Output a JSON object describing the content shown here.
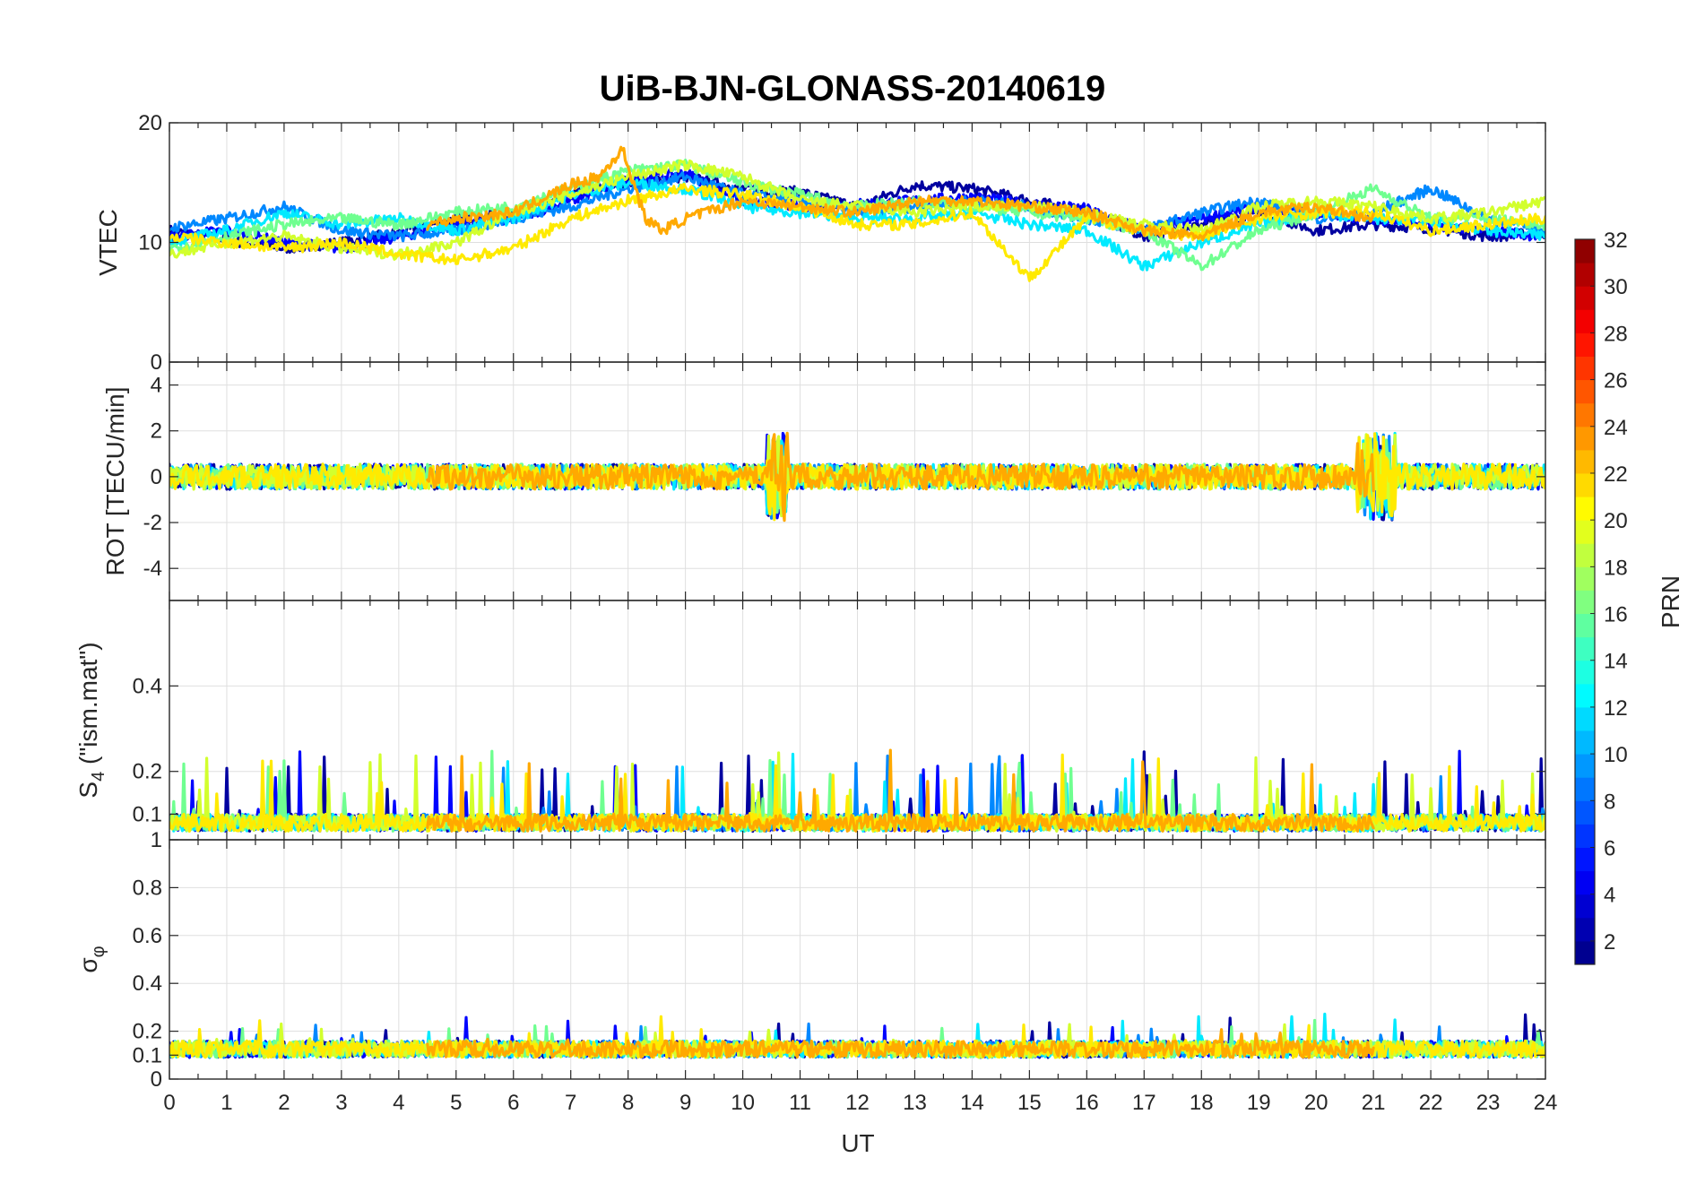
{
  "chart_data": {
    "type": "line",
    "title": "UiB-BJN-GLONASS-20140619",
    "xlabel": "UT",
    "xlim": [
      0,
      24
    ],
    "xticks": [
      "0",
      "1",
      "2",
      "3",
      "4",
      "5",
      "6",
      "7",
      "8",
      "9",
      "10",
      "11",
      "12",
      "13",
      "14",
      "15",
      "16",
      "17",
      "18",
      "19",
      "20",
      "21",
      "22",
      "23",
      "24"
    ],
    "grid": true,
    "panels": [
      {
        "id": "vtec",
        "ylabel": "VTEC",
        "ylim": [
          0,
          20
        ],
        "yticks": [
          0,
          10,
          20
        ],
        "ytick_labels": [
          "0",
          "10",
          "20"
        ]
      },
      {
        "id": "rot",
        "ylabel": "ROT [TECU/min]",
        "ylim": [
          -5.4,
          5
        ],
        "yticks": [
          -4,
          -2,
          0,
          2,
          4
        ],
        "ytick_labels": [
          "-4",
          "-2",
          "0",
          "2",
          "4"
        ]
      },
      {
        "id": "s4",
        "ylabel_main": "S",
        "ylabel_sub": "4",
        "ylabel_rest": " (\"ism.mat\")",
        "ylim": [
          0.04,
          0.6
        ],
        "yticks": [
          0.1,
          0.2,
          0.4
        ],
        "ytick_labels": [
          "0.1",
          "0.2",
          "0.4"
        ]
      },
      {
        "id": "sigma",
        "ylabel_main": "σ",
        "ylabel_sub": "φ",
        "ylim": [
          0,
          1
        ],
        "yticks": [
          0,
          0.1,
          0.2,
          0.4,
          0.6,
          0.8,
          1
        ],
        "ytick_labels": [
          "0",
          "0.1",
          "0.2",
          "0.4",
          "0.6",
          "0.8",
          "1"
        ]
      }
    ],
    "colorbar": {
      "label": "PRN",
      "range": [
        1,
        32
      ],
      "ticks": [
        "2",
        "4",
        "6",
        "8",
        "10",
        "12",
        "14",
        "16",
        "18",
        "20",
        "22",
        "24",
        "26",
        "28",
        "30",
        "32"
      ]
    },
    "series_style": {
      "description": "one coloured trace per GLONASS PRN, coloured by jet colormap",
      "prns": [
        1,
        3,
        5,
        8,
        10,
        12,
        14,
        16,
        18,
        20,
        22,
        24
      ]
    },
    "series": [
      {
        "prn": 2,
        "vtec": [
          [
            0,
            11
          ],
          [
            1,
            10.2
          ],
          [
            2,
            9.5
          ],
          [
            3,
            10
          ],
          [
            4,
            10.8
          ],
          [
            5,
            12
          ],
          [
            6,
            12.5
          ],
          [
            7,
            14
          ],
          [
            8,
            15
          ],
          [
            9,
            15.5
          ],
          [
            10,
            14.5
          ],
          [
            11,
            14.2
          ],
          [
            12,
            13
          ],
          [
            13,
            14.8
          ],
          [
            14,
            14.5
          ],
          [
            15,
            13.5
          ],
          [
            16,
            12.5
          ],
          [
            17,
            10.5
          ],
          [
            18,
            11.5
          ],
          [
            19,
            12.5
          ],
          [
            20,
            11
          ],
          [
            21,
            11.5
          ],
          [
            22,
            11.2
          ],
          [
            23,
            10.5
          ],
          [
            24,
            10.8
          ]
        ]
      },
      {
        "prn": 5,
        "vtec": [
          [
            0,
            10.5
          ],
          [
            1,
            11
          ],
          [
            2,
            10
          ],
          [
            3,
            9.5
          ],
          [
            4,
            10.5
          ],
          [
            5,
            11.5
          ],
          [
            6,
            12
          ],
          [
            7,
            13.5
          ],
          [
            8,
            15.2
          ],
          [
            9,
            15.8
          ],
          [
            10,
            13.5
          ],
          [
            11,
            13
          ],
          [
            12,
            13.2
          ],
          [
            13,
            13.5
          ],
          [
            14,
            13.8
          ],
          [
            15,
            13.2
          ],
          [
            16,
            12.8
          ],
          [
            17,
            11
          ],
          [
            18,
            12
          ],
          [
            19,
            13
          ],
          [
            20,
            12.5
          ],
          [
            21,
            12
          ],
          [
            22,
            11.5
          ],
          [
            23,
            11
          ],
          [
            24,
            10.5
          ]
        ]
      },
      {
        "prn": 9,
        "vtec": [
          [
            0,
            11.2
          ],
          [
            1,
            12
          ],
          [
            2,
            13
          ],
          [
            3,
            11
          ],
          [
            4,
            10.5
          ],
          [
            5,
            11
          ],
          [
            6,
            12
          ],
          [
            7,
            13
          ],
          [
            8,
            14.5
          ],
          [
            9,
            15.5
          ],
          [
            10,
            14
          ],
          [
            11,
            13.5
          ],
          [
            12,
            12.5
          ],
          [
            13,
            13
          ],
          [
            14,
            13.5
          ],
          [
            15,
            13
          ],
          [
            16,
            12
          ],
          [
            17,
            11
          ],
          [
            18,
            12.5
          ],
          [
            19,
            13.5
          ],
          [
            20,
            12
          ],
          [
            21,
            12.5
          ],
          [
            22,
            14.5
          ],
          [
            23,
            12
          ],
          [
            24,
            11
          ]
        ]
      },
      {
        "prn": 12,
        "vtec": [
          [
            0,
            10
          ],
          [
            1,
            11
          ],
          [
            2,
            12.5
          ],
          [
            3,
            11.5
          ],
          [
            4,
            12
          ],
          [
            5,
            11
          ],
          [
            6,
            12
          ],
          [
            7,
            14
          ],
          [
            8,
            15
          ],
          [
            9,
            14.5
          ],
          [
            10,
            13
          ],
          [
            11,
            12.5
          ],
          [
            12,
            12
          ],
          [
            13,
            12
          ],
          [
            14,
            12.5
          ],
          [
            15,
            11.5
          ],
          [
            16,
            11
          ],
          [
            17,
            8
          ],
          [
            18,
            10
          ],
          [
            19,
            11.5
          ],
          [
            20,
            12.5
          ],
          [
            21,
            12
          ],
          [
            22,
            11.8
          ],
          [
            23,
            11
          ],
          [
            24,
            10.5
          ]
        ]
      },
      {
        "prn": 16,
        "vtec": [
          [
            0,
            9.5
          ],
          [
            1,
            10.5
          ],
          [
            2,
            11.5
          ],
          [
            3,
            12
          ],
          [
            4,
            11.5
          ],
          [
            5,
            12.5
          ],
          [
            6,
            13
          ],
          [
            7,
            14.5
          ],
          [
            8,
            16
          ],
          [
            9,
            16.5
          ],
          [
            10,
            15
          ],
          [
            11,
            14
          ],
          [
            12,
            13
          ],
          [
            13,
            13.5
          ],
          [
            14,
            13
          ],
          [
            15,
            12.5
          ],
          [
            16,
            12
          ],
          [
            17,
            11
          ],
          [
            18,
            8
          ],
          [
            19,
            11
          ],
          [
            20,
            12.5
          ],
          [
            21,
            14.5
          ],
          [
            22,
            12
          ],
          [
            23,
            12
          ],
          [
            24,
            11.5
          ]
        ]
      },
      {
        "prn": 19,
        "vtec": [
          [
            0,
            9
          ],
          [
            1,
            10
          ],
          [
            2,
            10.5
          ],
          [
            3,
            9.5
          ],
          [
            4,
            9
          ],
          [
            5,
            10
          ],
          [
            6,
            12.5
          ],
          [
            7,
            14
          ],
          [
            8,
            15.5
          ],
          [
            9,
            16.5
          ],
          [
            10,
            15.5
          ],
          [
            11,
            13.5
          ],
          [
            12,
            13
          ],
          [
            13,
            12.5
          ],
          [
            14,
            13
          ],
          [
            15,
            13
          ],
          [
            16,
            12.5
          ],
          [
            17,
            11.5
          ],
          [
            18,
            11
          ],
          [
            19,
            13
          ],
          [
            20,
            13.5
          ],
          [
            21,
            13
          ],
          [
            22,
            12
          ],
          [
            23,
            12.5
          ],
          [
            24,
            13.5
          ]
        ]
      },
      {
        "prn": 21,
        "vtec": [
          [
            0,
            10.5
          ],
          [
            1,
            10
          ],
          [
            2,
            9.5
          ],
          [
            3,
            10
          ],
          [
            4,
            9
          ],
          [
            5,
            8.5
          ],
          [
            6,
            9.5
          ],
          [
            7,
            12
          ],
          [
            8,
            13.5
          ],
          [
            9,
            14.5
          ],
          [
            10,
            14
          ],
          [
            11,
            13
          ],
          [
            12,
            11.5
          ],
          [
            13,
            11.5
          ],
          [
            14,
            12.5
          ],
          [
            15,
            7
          ],
          [
            16,
            12
          ],
          [
            17,
            11
          ],
          [
            18,
            10.5
          ],
          [
            19,
            12
          ],
          [
            20,
            12.5
          ],
          [
            21,
            12.5
          ],
          [
            22,
            11
          ],
          [
            23,
            11.5
          ],
          [
            24,
            12
          ]
        ]
      },
      {
        "prn": 23,
        "vtec": [
          [
            4.5,
            11.5
          ],
          [
            5,
            12
          ],
          [
            6,
            12.5
          ],
          [
            7,
            14.8
          ],
          [
            7.5,
            15.5
          ],
          [
            7.9,
            17.8
          ],
          [
            8.3,
            12
          ],
          [
            8.6,
            11
          ],
          [
            9,
            12
          ],
          [
            10,
            13.5
          ],
          [
            11,
            13
          ],
          [
            12,
            12.5
          ],
          [
            13,
            13.5
          ],
          [
            14,
            13.5
          ],
          [
            15,
            13
          ],
          [
            16,
            12.5
          ],
          [
            17,
            11
          ],
          [
            18,
            10.5
          ],
          [
            19,
            12.5
          ],
          [
            20,
            13
          ],
          [
            21,
            12
          ]
        ]
      }
    ]
  }
}
